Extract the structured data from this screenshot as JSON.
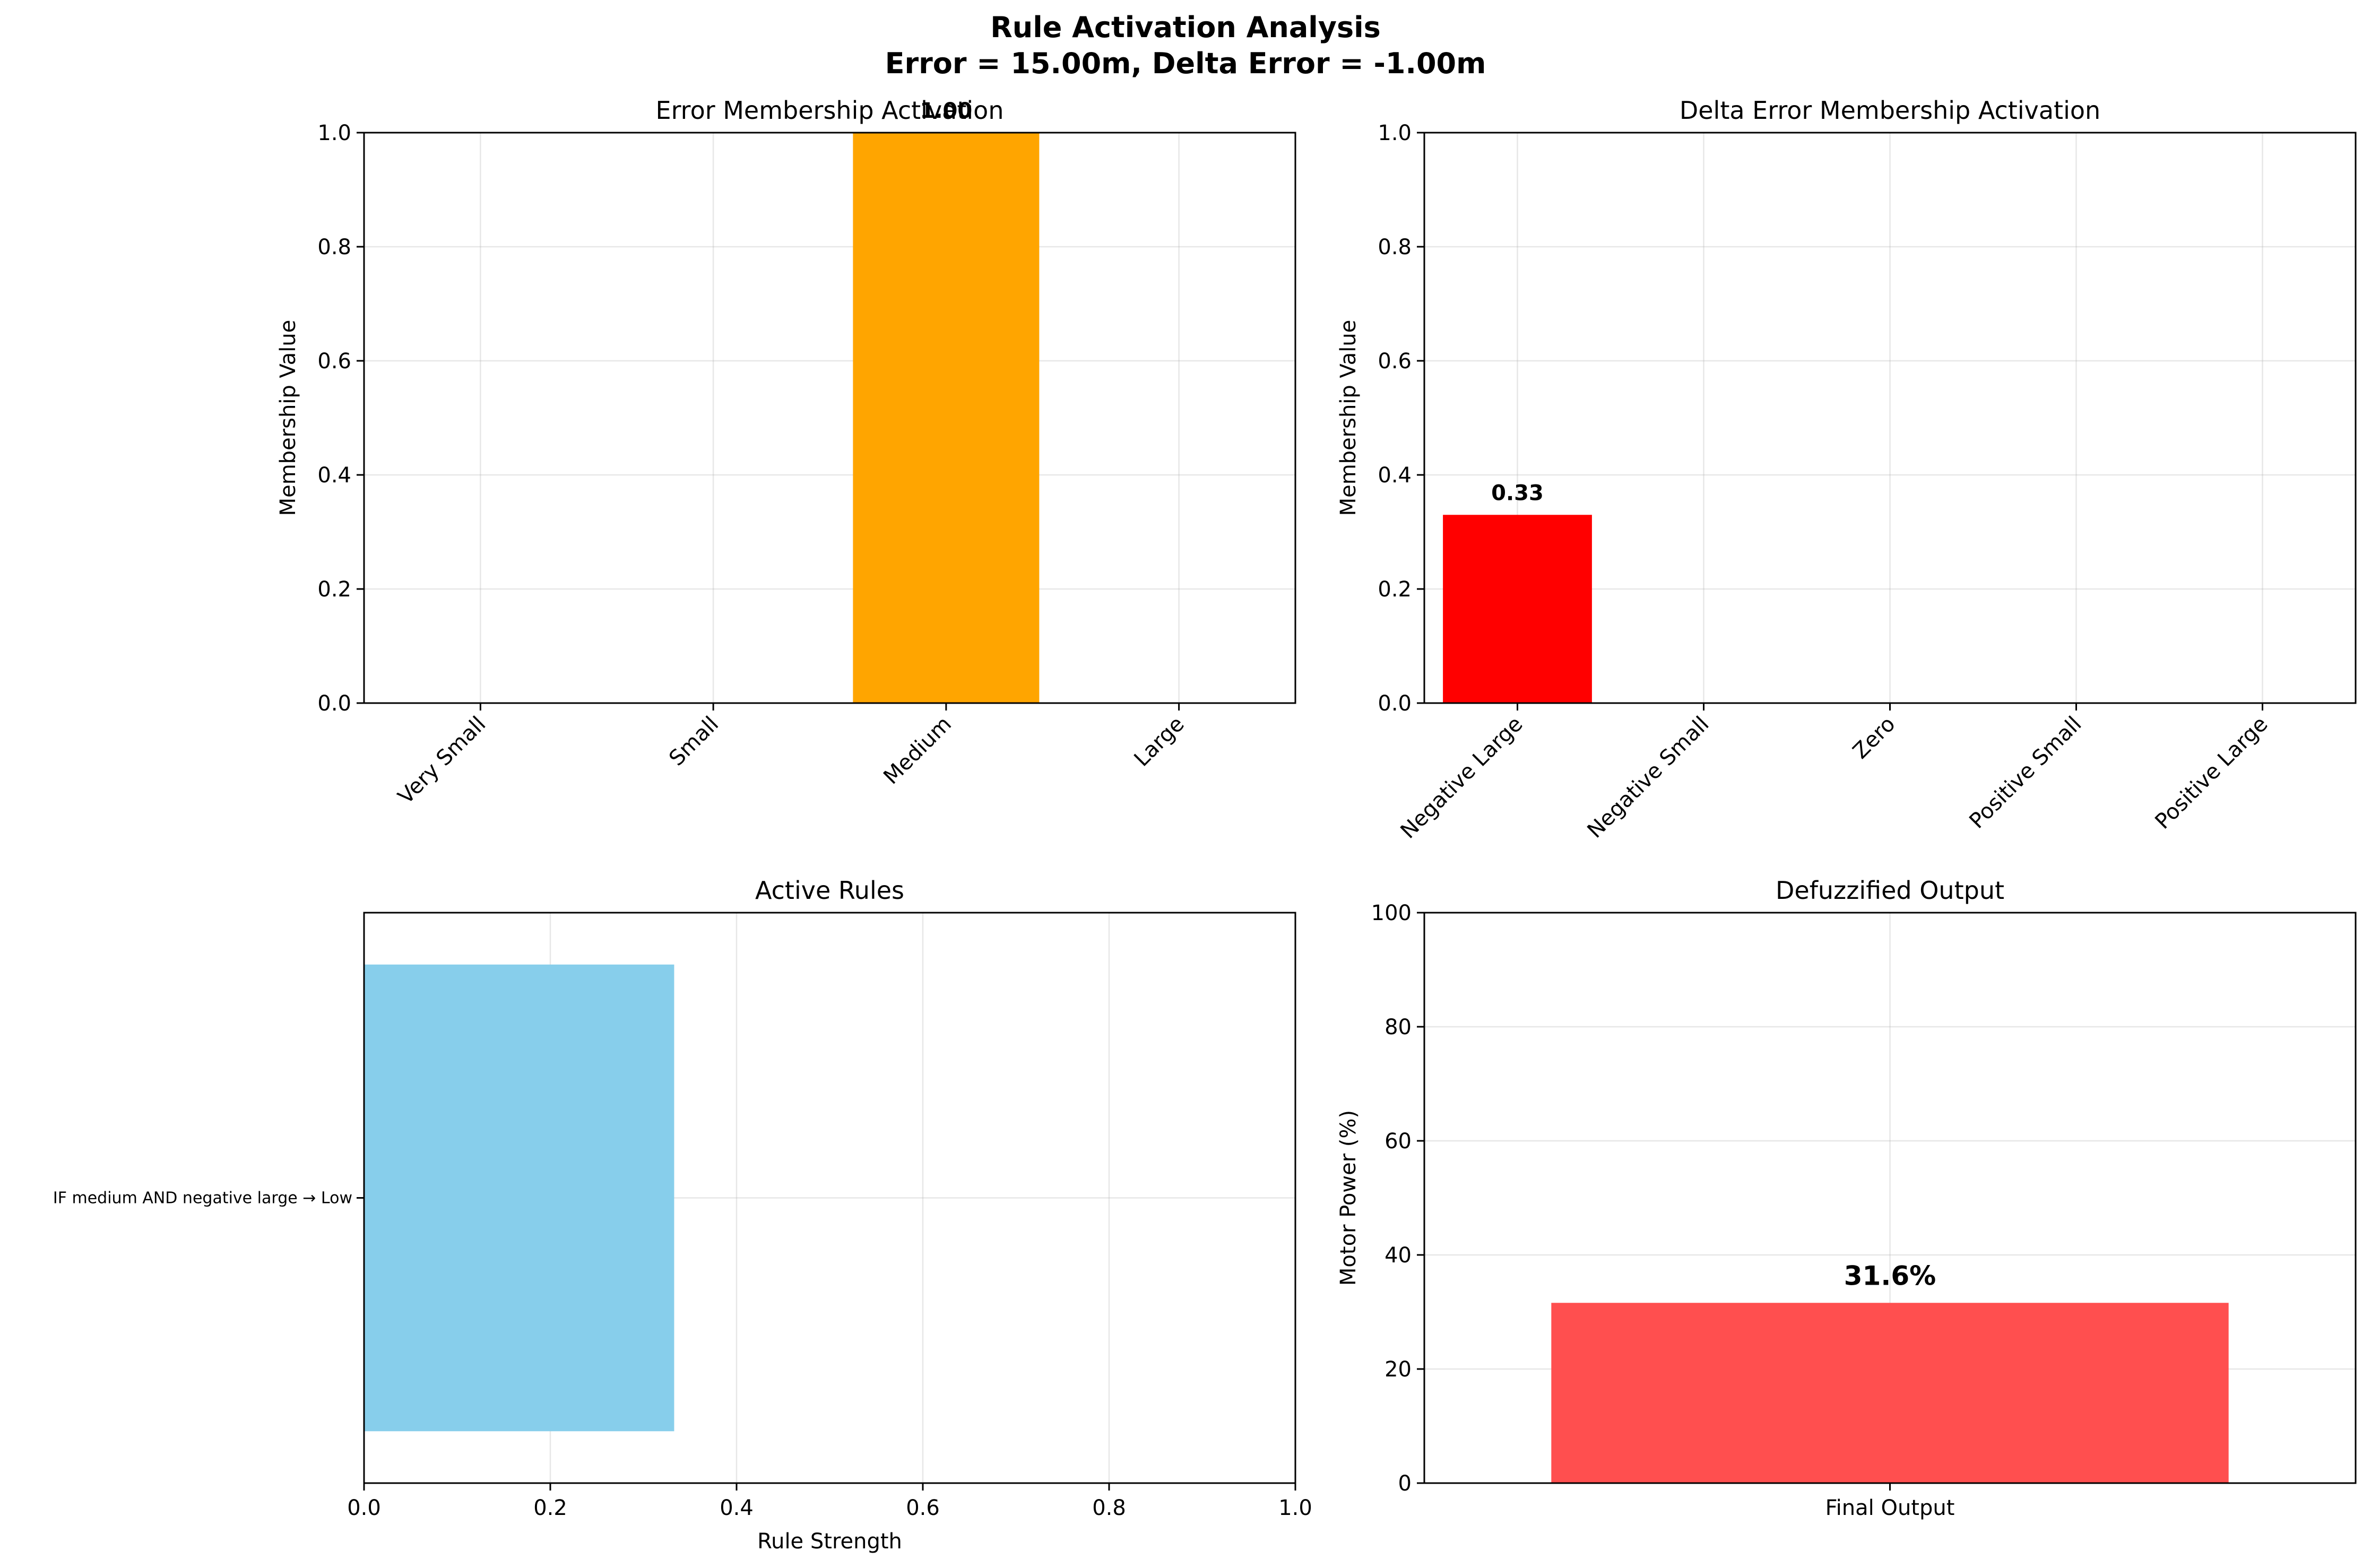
{
  "title": {
    "line1": "Rule Activation Analysis",
    "line2": "Error = 15.00m, Delta Error = -1.00m"
  },
  "chart_data": [
    {
      "type": "bar",
      "title": "Error Membership Activation",
      "xlabel": "",
      "ylabel": "Membership Value",
      "categories": [
        "Very Small",
        "Small",
        "Medium",
        "Large"
      ],
      "values": [
        0,
        0,
        1.0,
        0
      ],
      "colors": [
        "#008000",
        "#0000ff",
        "#ffa500",
        "#ff0000"
      ],
      "data_labels": [
        "",
        "",
        "1.00",
        ""
      ],
      "ylim": [
        0,
        1.0
      ],
      "yticks": [
        0.0,
        0.2,
        0.4,
        0.6,
        0.8,
        1.0
      ],
      "ytick_labels": [
        "0.0",
        "0.2",
        "0.4",
        "0.6",
        "0.8",
        "1.0"
      ],
      "grid": true
    },
    {
      "type": "bar",
      "title": "Delta Error Membership Activation",
      "xlabel": "",
      "ylabel": "Membership Value",
      "categories": [
        "Negative Large",
        "Negative Small",
        "Zero",
        "Positive Small",
        "Positive Large"
      ],
      "values": [
        0.33,
        0,
        0,
        0,
        0
      ],
      "colors": [
        "#ff0000",
        "#ffa500",
        "#008000",
        "#0000ff",
        "#800080"
      ],
      "data_labels": [
        "0.33",
        "",
        "",
        "",
        ""
      ],
      "ylim": [
        0,
        1.0
      ],
      "yticks": [
        0.0,
        0.2,
        0.4,
        0.6,
        0.8,
        1.0
      ],
      "ytick_labels": [
        "0.0",
        "0.2",
        "0.4",
        "0.6",
        "0.8",
        "1.0"
      ],
      "grid": true
    },
    {
      "type": "bar",
      "orientation": "horizontal",
      "title": "Active Rules",
      "xlabel": "Rule Strength",
      "ylabel": "",
      "categories": [
        "IF medium AND negative large → Low"
      ],
      "values": [
        0.333
      ],
      "colors": [
        "#87ceeb"
      ],
      "xlim": [
        0,
        1.0
      ],
      "xticks": [
        0.0,
        0.2,
        0.4,
        0.6,
        0.8,
        1.0
      ],
      "xtick_labels": [
        "0.0",
        "0.2",
        "0.4",
        "0.6",
        "0.8",
        "1.0"
      ],
      "grid": true
    },
    {
      "type": "bar",
      "title": "Defuzzified Output",
      "xlabel": "",
      "ylabel": "Motor Power (%)",
      "categories": [
        "Final Output"
      ],
      "values": [
        31.6
      ],
      "colors": [
        "#ff4f4f"
      ],
      "data_labels": [
        "31.6%"
      ],
      "ylim": [
        0,
        100
      ],
      "yticks": [
        0,
        20,
        40,
        60,
        80,
        100
      ],
      "ytick_labels": [
        "0",
        "20",
        "40",
        "60",
        "80",
        "100"
      ],
      "grid": true
    }
  ]
}
